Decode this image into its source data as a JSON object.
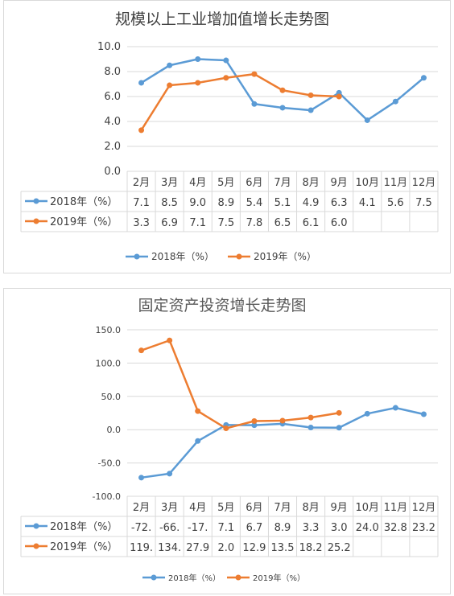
{
  "colors": {
    "s2018": "#5b9bd5",
    "s2019": "#ed7d31",
    "grid": "#d9d9d9",
    "text": "#404040"
  },
  "chart_data": [
    {
      "type": "line",
      "title": "规模以上工业增加值增长走势图",
      "categories": [
        "2月",
        "3月",
        "4月",
        "5月",
        "6月",
        "7月",
        "8月",
        "9月",
        "10月",
        "11月",
        "12月"
      ],
      "y_ticks": [
        "0.0",
        "2.0",
        "4.0",
        "6.0",
        "8.0",
        "10.0"
      ],
      "ylim": [
        0,
        10
      ],
      "grid": true,
      "legend": "bottom",
      "series": [
        {
          "name": "2018年（%）",
          "values": [
            7.1,
            8.5,
            9.0,
            8.9,
            5.4,
            5.1,
            4.9,
            6.3,
            4.1,
            5.6,
            7.5
          ],
          "labels": [
            "7.1",
            "8.5",
            "9.0",
            "8.9",
            "5.4",
            "5.1",
            "4.9",
            "6.3",
            "4.1",
            "5.6",
            "7.5"
          ]
        },
        {
          "name": "2019年（%）",
          "values": [
            3.3,
            6.9,
            7.1,
            7.5,
            7.8,
            6.5,
            6.1,
            6.0,
            null,
            null,
            null
          ],
          "labels": [
            "3.3",
            "6.9",
            "7.1",
            "7.5",
            "7.8",
            "6.5",
            "6.1",
            "6.0",
            "",
            "",
            ""
          ]
        }
      ]
    },
    {
      "type": "line",
      "title": "固定资产投资增长走势图",
      "categories": [
        "2月",
        "3月",
        "4月",
        "5月",
        "6月",
        "7月",
        "8月",
        "9月",
        "10月",
        "11月",
        "12月"
      ],
      "y_ticks": [
        "-100.0",
        "-50.0",
        "0.0",
        "50.0",
        "100.0",
        "150.0"
      ],
      "ylim": [
        -100,
        150
      ],
      "grid": true,
      "legend": "bottom",
      "series": [
        {
          "name": "2018年（%）",
          "values": [
            -72.0,
            -66.0,
            -17.0,
            7.1,
            6.7,
            8.9,
            3.3,
            3.0,
            24.0,
            32.8,
            23.2
          ],
          "labels": [
            "-72.",
            "-66.",
            "-17.",
            "7.1",
            "6.7",
            "8.9",
            "3.3",
            "3.0",
            "24.0",
            "32.8",
            "23.2"
          ]
        },
        {
          "name": "2019年（%）",
          "values": [
            119.0,
            134.0,
            27.9,
            2.0,
            12.9,
            13.5,
            18.2,
            25.2,
            null,
            null,
            null
          ],
          "labels": [
            "119.",
            "134.",
            "27.9",
            "2.0",
            "12.9",
            "13.5",
            "18.2",
            "25.2",
            "",
            "",
            ""
          ]
        }
      ]
    }
  ]
}
